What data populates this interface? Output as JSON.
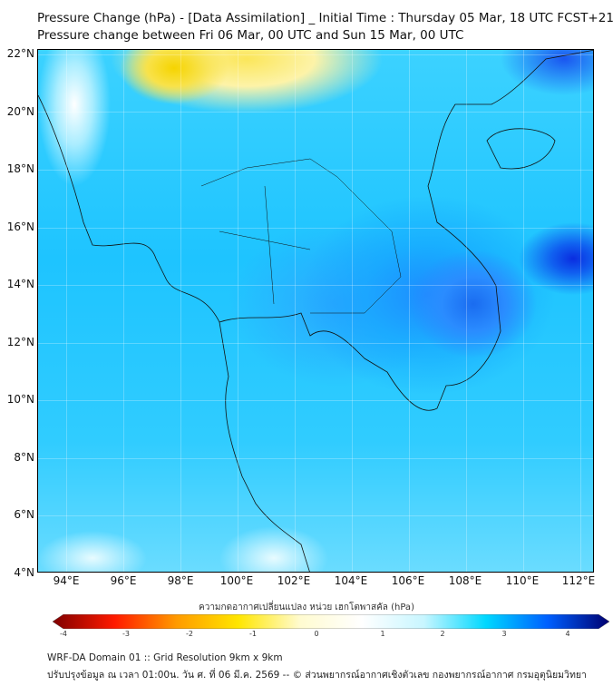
{
  "header": {
    "title": "Pressure Change (hPa) - [Data Assimilation] _ Initial Time : Thursday 05 Mar, 18 UTC FCST+216",
    "subtitle": "Pressure change between Fri 06 Mar, 00 UTC and Sun 15 Mar, 00 UTC"
  },
  "map": {
    "lat_labels": [
      "22°N",
      "20°N",
      "18°N",
      "16°N",
      "14°N",
      "12°N",
      "10°N",
      "8°N",
      "6°N",
      "4°N"
    ],
    "lon_labels": [
      "94°E",
      "96°E",
      "98°E",
      "100°E",
      "102°E",
      "104°E",
      "106°E",
      "108°E",
      "110°E",
      "112°E"
    ],
    "extent": {
      "lon": [
        93,
        112.5
      ],
      "lat": [
        4,
        22.15
      ]
    }
  },
  "colorbar": {
    "label": "ความกดอากาศเปลี่ยนแปลง หน่วย เฮกโตพาสคัล (hPa)",
    "ticks": [
      "-4",
      "-3",
      "-2",
      "-1",
      "0",
      "1",
      "2",
      "3",
      "4"
    ],
    "range": [
      -4,
      4
    ],
    "colors": [
      "#7f0000",
      "#ff1a00",
      "#ff9a00",
      "#ffe600",
      "#fffbd0",
      "#ffffff",
      "#c8f6ff",
      "#00d8ff",
      "#0060ff",
      "#000070"
    ]
  },
  "footer": {
    "line1": "WRF-DA Domain 01 :: Grid Resolution 9km x 9km",
    "line2": "ปรับปรุงข้อมูล ณ เวลา 01:00น. วัน ศ. ที่ 06 มี.ค. 2569 -- © ส่วนพยากรณ์อากาศเชิงตัวเลข กองพยากรณ์อากาศ กรมอุตุนิยมวิทยา"
  }
}
